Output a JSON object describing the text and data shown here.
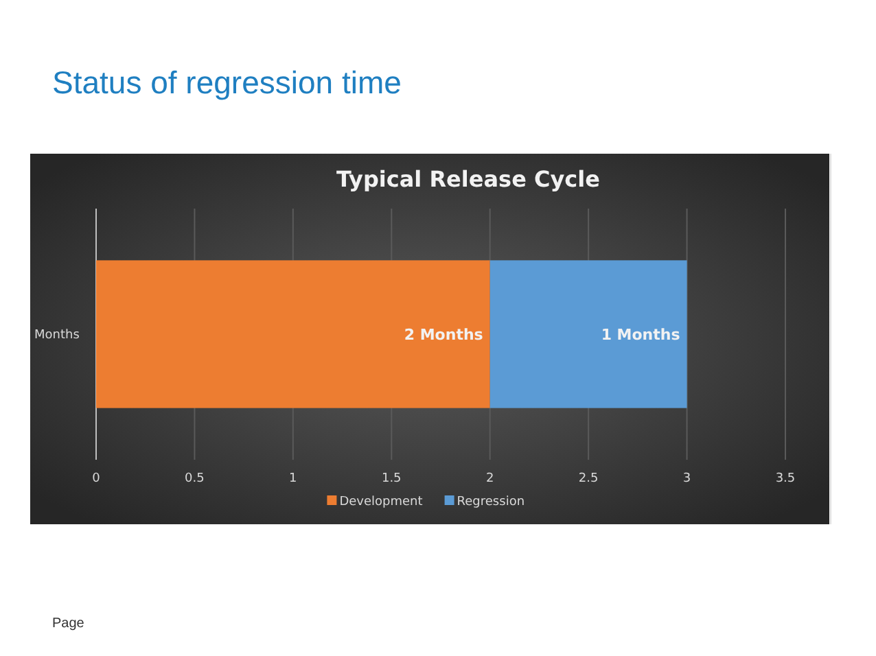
{
  "chart_data": {
    "type": "bar",
    "orientation": "horizontal",
    "stacked": true,
    "title": "Status of regression time",
    "subtitle": "Typical Release Cycle",
    "categories": [
      "Months"
    ],
    "series": [
      {
        "name": "Development",
        "color": "#ed7d31",
        "values": [
          2
        ],
        "value_labels": [
          "2 Months"
        ]
      },
      {
        "name": "Regression",
        "color": "#5b9bd5",
        "values": [
          1
        ],
        "value_labels": [
          "1 Months"
        ]
      }
    ],
    "xlim": [
      0,
      3.5
    ],
    "xticks": [
      0,
      0.5,
      1,
      1.5,
      2,
      2.5,
      3,
      3.5
    ],
    "grid": "x",
    "legend": "bottom",
    "annotations": [
      "Page"
    ]
  }
}
